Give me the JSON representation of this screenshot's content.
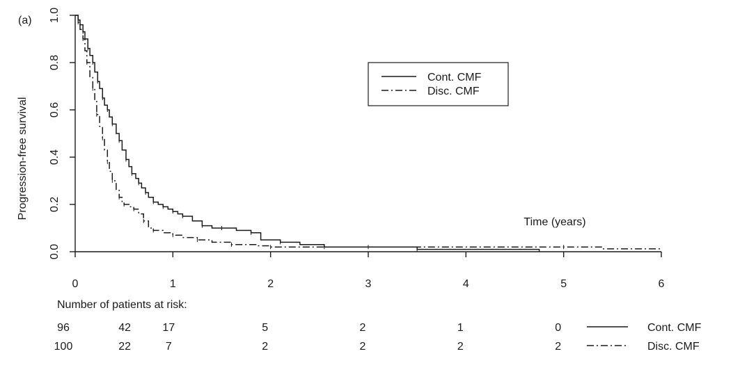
{
  "panel_label": "(a)",
  "chart_data": {
    "type": "line",
    "title": "",
    "xlabel": "Time (years)",
    "ylabel": "Progression-free survival",
    "xlim": [
      0,
      6
    ],
    "ylim": [
      0,
      1
    ],
    "x_ticks": [
      "0",
      "1",
      "2",
      "3",
      "4",
      "5",
      "6"
    ],
    "y_ticks": [
      "0.0",
      "0.2",
      "0.4",
      "0.6",
      "0.8",
      "1.0"
    ],
    "grid": false,
    "legend_position": "top-center",
    "series": [
      {
        "name": "Cont. CMF",
        "style": "solid",
        "x": [
          0,
          0.03,
          0.05,
          0.08,
          0.1,
          0.13,
          0.15,
          0.18,
          0.2,
          0.23,
          0.25,
          0.28,
          0.3,
          0.33,
          0.35,
          0.38,
          0.42,
          0.45,
          0.48,
          0.52,
          0.55,
          0.58,
          0.62,
          0.65,
          0.68,
          0.72,
          0.75,
          0.8,
          0.85,
          0.9,
          0.95,
          1.0,
          1.05,
          1.1,
          1.2,
          1.3,
          1.4,
          1.5,
          1.65,
          1.8,
          1.9,
          2.1,
          2.3,
          2.55,
          2.65,
          3.5,
          4.75
        ],
        "y": [
          1.0,
          0.98,
          0.96,
          0.93,
          0.9,
          0.86,
          0.83,
          0.8,
          0.76,
          0.72,
          0.69,
          0.65,
          0.62,
          0.6,
          0.57,
          0.54,
          0.5,
          0.47,
          0.43,
          0.39,
          0.36,
          0.33,
          0.31,
          0.29,
          0.27,
          0.25,
          0.23,
          0.21,
          0.2,
          0.19,
          0.18,
          0.17,
          0.16,
          0.15,
          0.13,
          0.11,
          0.1,
          0.1,
          0.09,
          0.08,
          0.05,
          0.04,
          0.03,
          0.02,
          0.02,
          0.01,
          0.0
        ]
      },
      {
        "name": "Disc. CMF",
        "style": "dashdot",
        "x": [
          0,
          0.03,
          0.05,
          0.08,
          0.1,
          0.12,
          0.15,
          0.18,
          0.2,
          0.22,
          0.25,
          0.28,
          0.3,
          0.33,
          0.35,
          0.38,
          0.42,
          0.45,
          0.48,
          0.5,
          0.55,
          0.6,
          0.65,
          0.7,
          0.75,
          0.8,
          0.9,
          1.0,
          1.1,
          1.25,
          1.4,
          1.6,
          1.85,
          2.0,
          2.5,
          3.0,
          4.0,
          5.0,
          5.4,
          6.0
        ],
        "y": [
          1.0,
          0.97,
          0.94,
          0.9,
          0.85,
          0.8,
          0.74,
          0.69,
          0.64,
          0.58,
          0.53,
          0.48,
          0.43,
          0.38,
          0.34,
          0.3,
          0.26,
          0.23,
          0.21,
          0.2,
          0.19,
          0.18,
          0.16,
          0.13,
          0.1,
          0.09,
          0.08,
          0.07,
          0.06,
          0.05,
          0.04,
          0.03,
          0.025,
          0.02,
          0.02,
          0.02,
          0.02,
          0.02,
          0.012,
          0.01
        ]
      }
    ],
    "risk_table": {
      "title": "Number of patients at risk:",
      "times": [
        0,
        0.5,
        1,
        2,
        3,
        4,
        5
      ],
      "rows": [
        {
          "name": "Cont. CMF",
          "style": "solid",
          "counts": [
            "96",
            "42",
            "17",
            "5",
            "2",
            "1",
            "0"
          ]
        },
        {
          "name": "Disc. CMF",
          "style": "dashdot",
          "counts": [
            "100",
            "22",
            "7",
            "2",
            "2",
            "2",
            "2"
          ]
        }
      ]
    }
  }
}
